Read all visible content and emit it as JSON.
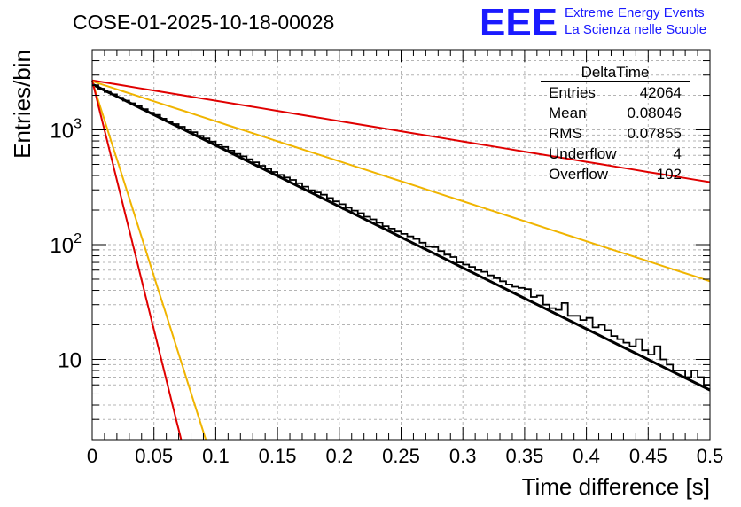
{
  "chart_data": {
    "type": "line",
    "title": "COSE-01-2025-10-18-00028",
    "xlabel": "Time difference [s]",
    "ylabel": "Entries/bin",
    "xlim": [
      0,
      0.5
    ],
    "ylim": [
      2,
      5000
    ],
    "yscale": "log",
    "grid": true,
    "x_tick_labels": [
      "0",
      "0.05",
      "0.1",
      "0.15",
      "0.2",
      "0.25",
      "0.3",
      "0.35",
      "0.4",
      "0.45",
      "0.5"
    ],
    "y_tick_labels": [
      {
        "value": 10,
        "base": "10",
        "exp": ""
      },
      {
        "value": 100,
        "base": "10",
        "exp": "2"
      },
      {
        "value": 1000,
        "base": "10",
        "exp": "3"
      }
    ],
    "histogram": {
      "name": "DeltaTime",
      "bin_width": 0.005,
      "counts": [
        2450,
        2286,
        2140,
        2041,
        1911,
        1800,
        1706,
        1622,
        1514,
        1412,
        1349,
        1252,
        1180,
        1123,
        1065,
        1010,
        955,
        890,
        842,
        790,
        744,
        710,
        660,
        618,
        588,
        555,
        522,
        487,
        458,
        430,
        405,
        384,
        366,
        342,
        320,
        298,
        285,
        272,
        255,
        238,
        225,
        210,
        198,
        188,
        175,
        166,
        155,
        145,
        138,
        130,
        124,
        118,
        112,
        104,
        96,
        95,
        88,
        82,
        78,
        70,
        67,
        64,
        60,
        58,
        54,
        51,
        48,
        45,
        43,
        42,
        41,
        35,
        36,
        30,
        28,
        27,
        31,
        24,
        24,
        22,
        23,
        19,
        20,
        18,
        16,
        15,
        14,
        13,
        15,
        12,
        11,
        13,
        10,
        9,
        8,
        8,
        7,
        8,
        7,
        6
      ]
    },
    "series": [
      {
        "name": "fit",
        "color": "#000000",
        "x": [
          0,
          0.5
        ],
        "y": [
          2500,
          5.4
        ]
      },
      {
        "name": "band-upper-slow",
        "color": "#e00000",
        "x": [
          0,
          0.5
        ],
        "y": [
          2700,
          350
        ]
      },
      {
        "name": "band-upper-fast",
        "color": "#f0b400",
        "x": [
          0,
          0.5
        ],
        "y": [
          2650,
          48
        ]
      },
      {
        "name": "band-lower-slow",
        "color": "#f0b400",
        "x": [
          0,
          0.092
        ],
        "y": [
          2650,
          2
        ]
      },
      {
        "name": "band-lower-fast",
        "color": "#e00000",
        "x": [
          0,
          0.072
        ],
        "y": [
          2700,
          2
        ]
      }
    ],
    "stats": {
      "title": "DeltaTime",
      "rows": [
        {
          "label": "Entries",
          "value": "42064"
        },
        {
          "label": "Mean",
          "value": "0.08046"
        },
        {
          "label": "RMS",
          "value": "0.07855"
        },
        {
          "label": "Underflow",
          "value": "4"
        },
        {
          "label": "Overflow",
          "value": "102"
        }
      ]
    }
  },
  "logo": {
    "mark": "EEE",
    "line1": "Extreme Energy Events",
    "line2": "La Scienza nelle Scuole",
    "color": "#1a1aff"
  }
}
